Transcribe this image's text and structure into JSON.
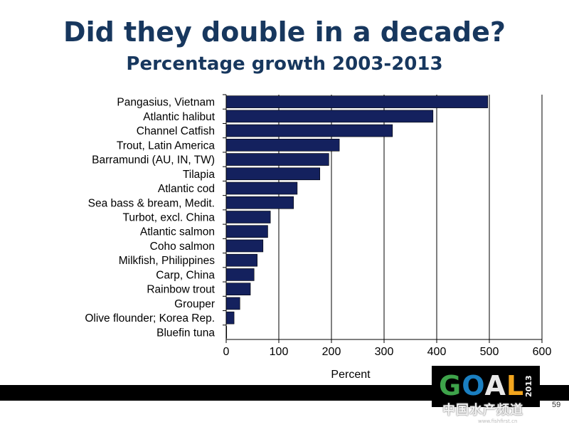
{
  "slide": {
    "title": "Did they double in a decade?",
    "subtitle": "Percentage growth 2003-2013",
    "page_number": "59"
  },
  "logo": {
    "letters": [
      "G",
      "O",
      "A",
      "L"
    ],
    "year": "2013"
  },
  "watermark": {
    "text": "中国水产频道",
    "url": "www.fishfirst.cn"
  },
  "colors": {
    "bar": "#14215e",
    "title": "#17375e",
    "grid": "#000000"
  },
  "chart_data": {
    "type": "bar",
    "orientation": "horizontal",
    "categories": [
      "Pangasius, Vietnam",
      "Atlantic halibut",
      "Channel Catfish",
      "Trout, Latin America",
      "Barramundi (AU, IN, TW)",
      "Tilapia",
      "Atlantic cod",
      "Sea bass & bream, Medit.",
      "Turbot, excl. China",
      "Atlantic salmon",
      "Coho salmon",
      "Milkfish, Philippines",
      "Carp, China",
      "Rainbow trout",
      "Grouper",
      "Olive flounder; Korea Rep.",
      "Bluefin tuna"
    ],
    "values": [
      497,
      393,
      316,
      215,
      195,
      178,
      135,
      128,
      84,
      79,
      70,
      59,
      53,
      46,
      26,
      15,
      1
    ],
    "xlabel": "Percent",
    "xlim": [
      0,
      600
    ],
    "xticks": [
      0,
      100,
      200,
      300,
      400,
      500,
      600
    ],
    "grid": "vertical"
  }
}
